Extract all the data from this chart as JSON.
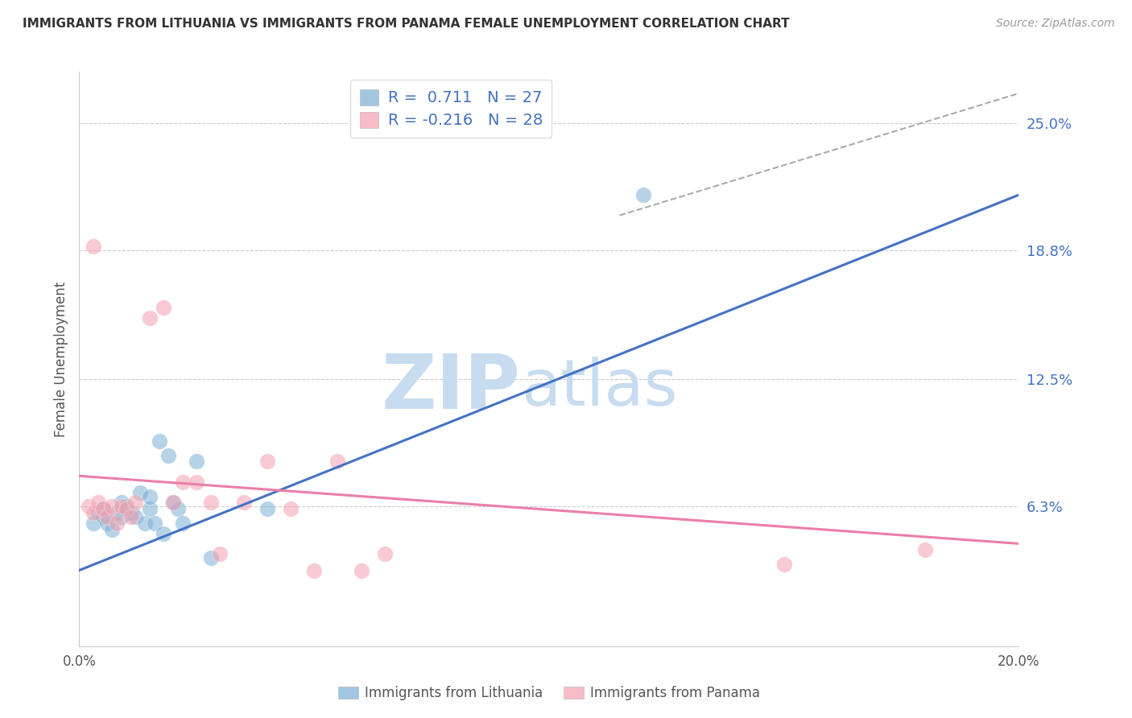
{
  "title": "IMMIGRANTS FROM LITHUANIA VS IMMIGRANTS FROM PANAMA FEMALE UNEMPLOYMENT CORRELATION CHART",
  "source": "Source: ZipAtlas.com",
  "ylabel": "Female Unemployment",
  "xlim": [
    0.0,
    0.2
  ],
  "ylim": [
    -0.005,
    0.275
  ],
  "ytick_values": [
    0.063,
    0.125,
    0.188,
    0.25
  ],
  "ytick_labels": [
    "6.3%",
    "12.5%",
    "18.8%",
    "25.0%"
  ],
  "xtick_values": [
    0.0,
    0.04,
    0.08,
    0.12,
    0.16,
    0.2
  ],
  "xtick_labels": [
    "0.0%",
    "",
    "",
    "",
    "",
    "20.0%"
  ],
  "color_lithuania": "#7BAFD4",
  "color_panama": "#F4A0B0",
  "color_blue_line": "#4472C4",
  "color_pink_line": "#E97FAA",
  "color_dashed": "#AAAAAA",
  "watermark_zip": "ZIP",
  "watermark_atlas": "atlas",
  "lithuania_x": [
    0.003,
    0.004,
    0.005,
    0.005,
    0.006,
    0.007,
    0.008,
    0.009,
    0.009,
    0.01,
    0.011,
    0.012,
    0.013,
    0.014,
    0.015,
    0.015,
    0.016,
    0.017,
    0.018,
    0.019,
    0.02,
    0.021,
    0.022,
    0.025,
    0.028,
    0.04,
    0.12
  ],
  "lithuania_y": [
    0.055,
    0.06,
    0.058,
    0.062,
    0.055,
    0.052,
    0.06,
    0.058,
    0.065,
    0.063,
    0.06,
    0.058,
    0.07,
    0.055,
    0.062,
    0.068,
    0.055,
    0.095,
    0.05,
    0.088,
    0.065,
    0.062,
    0.055,
    0.085,
    0.038,
    0.062,
    0.215
  ],
  "panama_x": [
    0.002,
    0.003,
    0.004,
    0.005,
    0.006,
    0.007,
    0.008,
    0.009,
    0.01,
    0.011,
    0.012,
    0.015,
    0.018,
    0.02,
    0.022,
    0.025,
    0.028,
    0.03,
    0.035,
    0.04,
    0.045,
    0.05,
    0.055,
    0.06,
    0.065,
    0.15,
    0.18,
    0.003
  ],
  "panama_y": [
    0.063,
    0.06,
    0.065,
    0.062,
    0.058,
    0.063,
    0.055,
    0.063,
    0.062,
    0.058,
    0.065,
    0.155,
    0.16,
    0.065,
    0.075,
    0.075,
    0.065,
    0.04,
    0.065,
    0.085,
    0.062,
    0.032,
    0.085,
    0.032,
    0.04,
    0.035,
    0.042,
    0.19
  ],
  "blue_line_x": [
    0.0,
    0.2
  ],
  "blue_line_y": [
    0.032,
    0.215
  ],
  "pink_line_x": [
    0.0,
    0.2
  ],
  "pink_line_y": [
    0.078,
    0.045
  ],
  "dashed_line_x": [
    0.115,
    0.205
  ],
  "dashed_line_y": [
    0.205,
    0.268
  ]
}
